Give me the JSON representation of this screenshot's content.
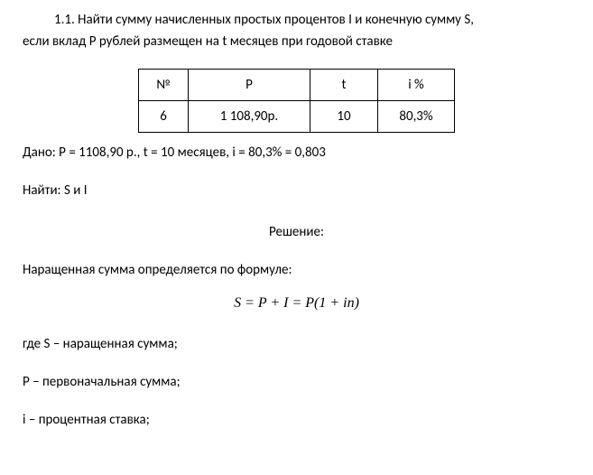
{
  "problem": {
    "number": "1.1.",
    "text_line1": "1.1. Найти сумму начисленных простых процентов I и конечную сумму S,",
    "text_line2": "если вклад P  рублей размещен на t месяцев при годовой ставке"
  },
  "table": {
    "headers": {
      "n": "№",
      "p": "P",
      "t": "t",
      "i": "i %"
    },
    "row": {
      "n": "6",
      "p": "1 108,90р.",
      "t": "10",
      "i": "80,3%"
    },
    "col_widths": {
      "n": "55px",
      "p": "135px",
      "t": "75px",
      "i": "85px"
    }
  },
  "given": "Дано: P = 1108,90 р., t = 10 месяцев, i = 80,3% = 0,803",
  "find": "Найти: S и I",
  "solution_header": "Решение:",
  "formula_intro": "Наращенная сумма определяется по формуле:",
  "formula": "S = P + I = P(1 + in)",
  "where": {
    "s": "где S – наращенная сумма;",
    "p": "P – первоначальная сумма;",
    "i": "i – процентная ставка;"
  }
}
